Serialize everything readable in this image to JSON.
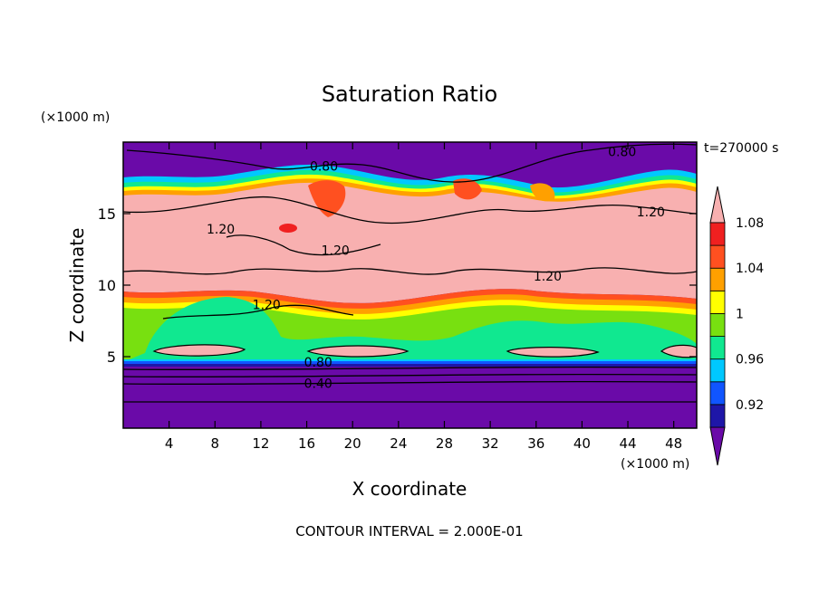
{
  "chart_data": {
    "type": "heatmap",
    "title": "Saturation Ratio",
    "xlabel": "X coordinate",
    "ylabel": "Z coordinate",
    "x_unit": "(×1000 m)",
    "y_unit": "(×1000 m)",
    "time_label": "t=270000 s",
    "footer": "CONTOUR INTERVAL = 2.000E-01",
    "xlim": [
      0,
      50
    ],
    "ylim": [
      0,
      20
    ],
    "x_ticks": [
      "4",
      "8",
      "12",
      "16",
      "20",
      "24",
      "28",
      "32",
      "36",
      "40",
      "44",
      "48"
    ],
    "y_ticks": [
      "5",
      "10",
      "15"
    ],
    "colorbar": {
      "labels": [
        "1.08",
        "1.04",
        "1",
        "0.96",
        "0.92"
      ],
      "levels": [
        0.9,
        0.92,
        0.94,
        0.96,
        0.98,
        1.0,
        1.02,
        1.04,
        1.06,
        1.08,
        1.1
      ],
      "colors": [
        "#6a0aa8",
        "#1e16a8",
        "#1055ff",
        "#00c8ff",
        "#10e890",
        "#78e010",
        "#ffff00",
        "#ffa000",
        "#ff5020",
        "#f02020",
        "#f8b0b0"
      ]
    },
    "contour_labels": [
      {
        "text": "0.80",
        "x": 17.5,
        "y": 18.2
      },
      {
        "text": "0.80",
        "x": 43.5,
        "y": 19.2
      },
      {
        "text": "1.20",
        "x": 8.5,
        "y": 13.8
      },
      {
        "text": "1.20",
        "x": 18.5,
        "y": 12.3
      },
      {
        "text": "1.20",
        "x": 12.5,
        "y": 8.5
      },
      {
        "text": "1.20",
        "x": 46.0,
        "y": 15.0
      },
      {
        "text": "1.20",
        "x": 37.0,
        "y": 10.5
      },
      {
        "text": "0.80",
        "x": 17.0,
        "y": 4.5
      },
      {
        "text": "0.40",
        "x": 17.0,
        "y": 3.0
      }
    ]
  }
}
